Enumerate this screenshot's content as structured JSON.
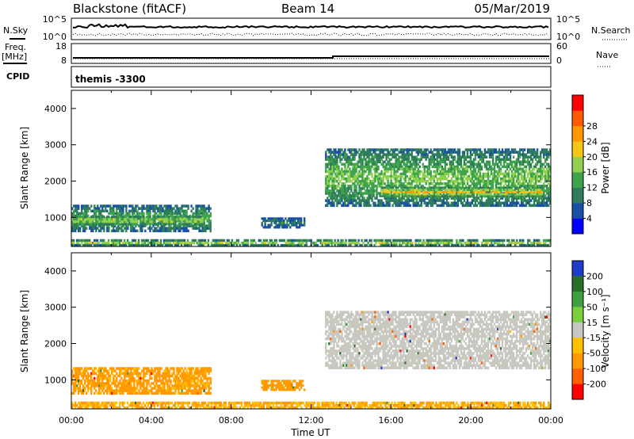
{
  "header": {
    "station": "Blackstone (fitACF)",
    "beam": "Beam 14",
    "date": "05/Mar/2019"
  },
  "strip": {
    "nsky_label": "N.Sky",
    "nsky_tick_top": "10^5",
    "nsky_tick_bottom": "10^0",
    "nsearch_label": "N.Search",
    "nsearch_tick_top": "10^5",
    "nsearch_tick_bottom": "10^0",
    "freq_label_1": "Freq.",
    "freq_label_2": "[MHz]",
    "freq_tick_top": "18",
    "freq_tick_bottom": "8",
    "nave_label": "Nave",
    "nave_tick_top": "60",
    "nave_tick_bottom": "0",
    "cpid_label": "CPID",
    "cpid_value": "themis -3300"
  },
  "chart_data": [
    {
      "type": "heatmap",
      "panel": "power",
      "ylabel": "Slant Range [km]",
      "xlabel": "Time UT",
      "x_range_hours": [
        0,
        24
      ],
      "ylim": [
        200,
        4500
      ],
      "yticks": [
        1000,
        2000,
        3000,
        4000
      ],
      "colorbar": {
        "label": "Power [dB]",
        "ticks": [
          "4",
          "8",
          "12",
          "16",
          "20",
          "24",
          "28"
        ],
        "colors": [
          "#0000ff",
          "#1a4fa8",
          "#2f7c5a",
          "#3fa34d",
          "#8fd14f",
          "#f5c518",
          "#ff9900",
          "#ff5a00",
          "#ff0000"
        ]
      },
      "echo_regions": [
        {
          "t_start": 0.0,
          "t_end": 7.0,
          "range_low": 600,
          "range_high": 1350,
          "power_db": 12
        },
        {
          "t_start": 0.0,
          "t_end": 6.6,
          "range_low": 780,
          "range_high": 1050,
          "power_db": 20
        },
        {
          "t_start": 0.0,
          "t_end": 24.0,
          "range_low": 200,
          "range_high": 400,
          "power_db": 18
        },
        {
          "t_start": 9.5,
          "t_end": 11.7,
          "range_low": 700,
          "range_high": 1000,
          "power_db": 8
        },
        {
          "t_start": 12.7,
          "t_end": 24.0,
          "range_low": 1300,
          "range_high": 2900,
          "power_db": 14
        },
        {
          "t_start": 15.5,
          "t_end": 23.6,
          "range_low": 1550,
          "range_high": 1850,
          "power_db": 22
        }
      ]
    },
    {
      "type": "heatmap",
      "panel": "velocity",
      "ylabel": "Slant Range [km]",
      "xlabel": "Time UT",
      "x_range_hours": [
        0,
        24
      ],
      "ylim": [
        200,
        4500
      ],
      "yticks": [
        1000,
        2000,
        3000,
        4000
      ],
      "xticks": [
        "00:00",
        "04:00",
        "08:00",
        "12:00",
        "16:00",
        "20:00",
        "00:00"
      ],
      "colorbar": {
        "label": "Velocity [m s⁻¹]",
        "ticks": [
          "200",
          "100",
          "50",
          "15",
          "-15",
          "-50",
          "-100",
          "-200"
        ],
        "colors": [
          "#1e3cc8",
          "#2a6e2a",
          "#3f9f3f",
          "#7ccf3c",
          "#c8c8c0",
          "#ffc000",
          "#ff9a00",
          "#ff6000",
          "#ff0000"
        ]
      },
      "echo_regions": [
        {
          "t_start": 0.0,
          "t_end": 7.0,
          "range_low": 600,
          "range_high": 1350,
          "velocity": -40
        },
        {
          "t_start": 0.0,
          "t_end": 24.0,
          "range_low": 200,
          "range_high": 400,
          "velocity": -30
        },
        {
          "t_start": 9.5,
          "t_end": 11.7,
          "range_low": 700,
          "range_high": 1000,
          "velocity": -50
        },
        {
          "t_start": 12.7,
          "t_end": 24.0,
          "range_low": 1300,
          "range_high": 2900,
          "velocity": 0
        }
      ]
    }
  ]
}
